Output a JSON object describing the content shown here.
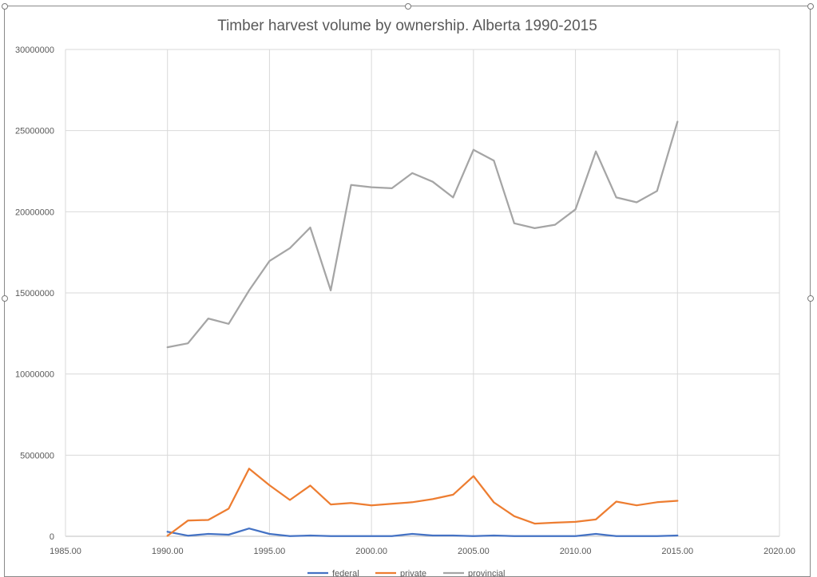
{
  "chart_data": {
    "type": "scatter",
    "mode": "lines",
    "title": "Timber harvest volume by ownership.  Alberta 1990-2015",
    "xlabel": "",
    "ylabel": "",
    "xlim": [
      1985,
      2020
    ],
    "ylim": [
      0,
      30000000
    ],
    "x_tick_labels": [
      "1985.00",
      "1990.00",
      "1995.00",
      "2000.00",
      "2005.00",
      "2010.00",
      "2015.00",
      "2020.00"
    ],
    "y_tick_labels": [
      "0",
      "5000000",
      "10000000",
      "15000000",
      "20000000",
      "25000000",
      "30000000"
    ],
    "x_ticks": [
      1985,
      1990,
      1995,
      2000,
      2005,
      2010,
      2015,
      2020
    ],
    "y_ticks": [
      0,
      5000000,
      10000000,
      15000000,
      20000000,
      25000000,
      30000000
    ],
    "grid": true,
    "legend_position": "bottom",
    "x": [
      1990,
      1991,
      1992,
      1993,
      1994,
      1995,
      1996,
      1997,
      1998,
      1999,
      2000,
      2001,
      2002,
      2003,
      2004,
      2005,
      2006,
      2007,
      2008,
      2009,
      2010,
      2011,
      2012,
      2013,
      2014,
      2015
    ],
    "series": [
      {
        "name": "federal",
        "color": "#4472c4",
        "values": [
          280000,
          40000,
          150000,
          100000,
          480000,
          150000,
          10000,
          50000,
          10000,
          10000,
          10000,
          10000,
          150000,
          50000,
          50000,
          10000,
          50000,
          10000,
          10000,
          10000,
          10000,
          150000,
          10000,
          10000,
          10000,
          50000
        ]
      },
      {
        "name": "private",
        "color": "#ed7d31",
        "values": [
          30000,
          970000,
          1010000,
          1700000,
          4170000,
          3150000,
          2240000,
          3130000,
          1960000,
          2050000,
          1910000,
          2000000,
          2100000,
          2290000,
          2560000,
          3710000,
          2090000,
          1240000,
          780000,
          840000,
          890000,
          1040000,
          2140000,
          1910000,
          2100000,
          2190000
        ]
      },
      {
        "name": "provincial",
        "color": "#a5a5a5",
        "values": [
          11650000,
          11890000,
          13420000,
          13090000,
          15150000,
          16960000,
          17760000,
          19030000,
          15150000,
          21650000,
          21510000,
          21450000,
          22380000,
          21850000,
          20880000,
          23820000,
          23150000,
          19290000,
          18990000,
          19200000,
          20150000,
          23720000,
          20880000,
          20580000,
          21280000,
          25550000
        ]
      }
    ]
  }
}
